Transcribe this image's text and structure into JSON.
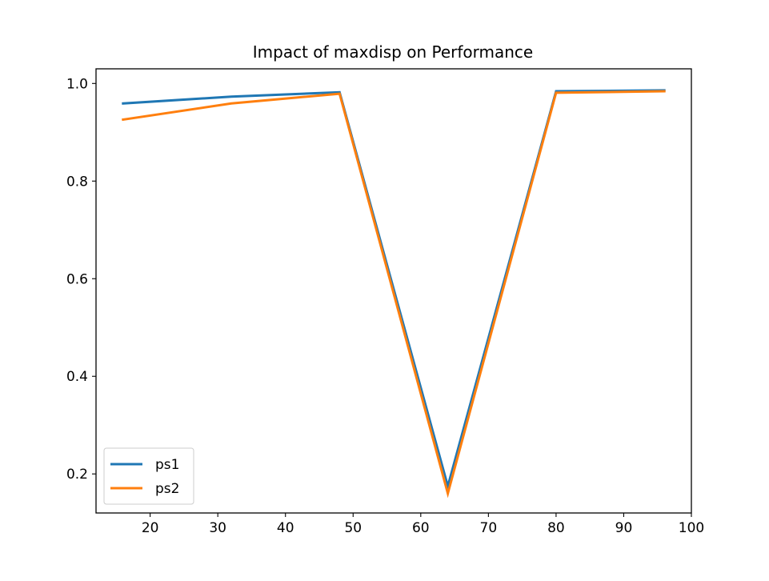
{
  "chart_data": {
    "type": "line",
    "title": "Impact of maxdisp on Performance",
    "xlabel": "",
    "ylabel": "",
    "x": [
      16,
      32,
      48,
      64,
      80,
      96
    ],
    "series": [
      {
        "name": "ps1",
        "color": "#1f77b4",
        "values": [
          0.959,
          0.973,
          0.982,
          0.175,
          0.984,
          0.986
        ]
      },
      {
        "name": "ps2",
        "color": "#ff7f0e",
        "values": [
          0.926,
          0.959,
          0.979,
          0.16,
          0.981,
          0.984
        ]
      }
    ],
    "xlim": [
      12,
      100
    ],
    "ylim": [
      0.12,
      1.03
    ],
    "xticks": [
      20,
      30,
      40,
      50,
      60,
      70,
      80,
      90,
      100
    ],
    "yticks": [
      0.2,
      0.4,
      0.6,
      0.8,
      1.0
    ],
    "xtick_labels": [
      "20",
      "30",
      "40",
      "50",
      "60",
      "70",
      "80",
      "90",
      "100"
    ],
    "ytick_labels": [
      "0.2",
      "0.4",
      "0.6",
      "0.8",
      "1.0"
    ],
    "grid": false,
    "legend_position": "lower-left"
  }
}
